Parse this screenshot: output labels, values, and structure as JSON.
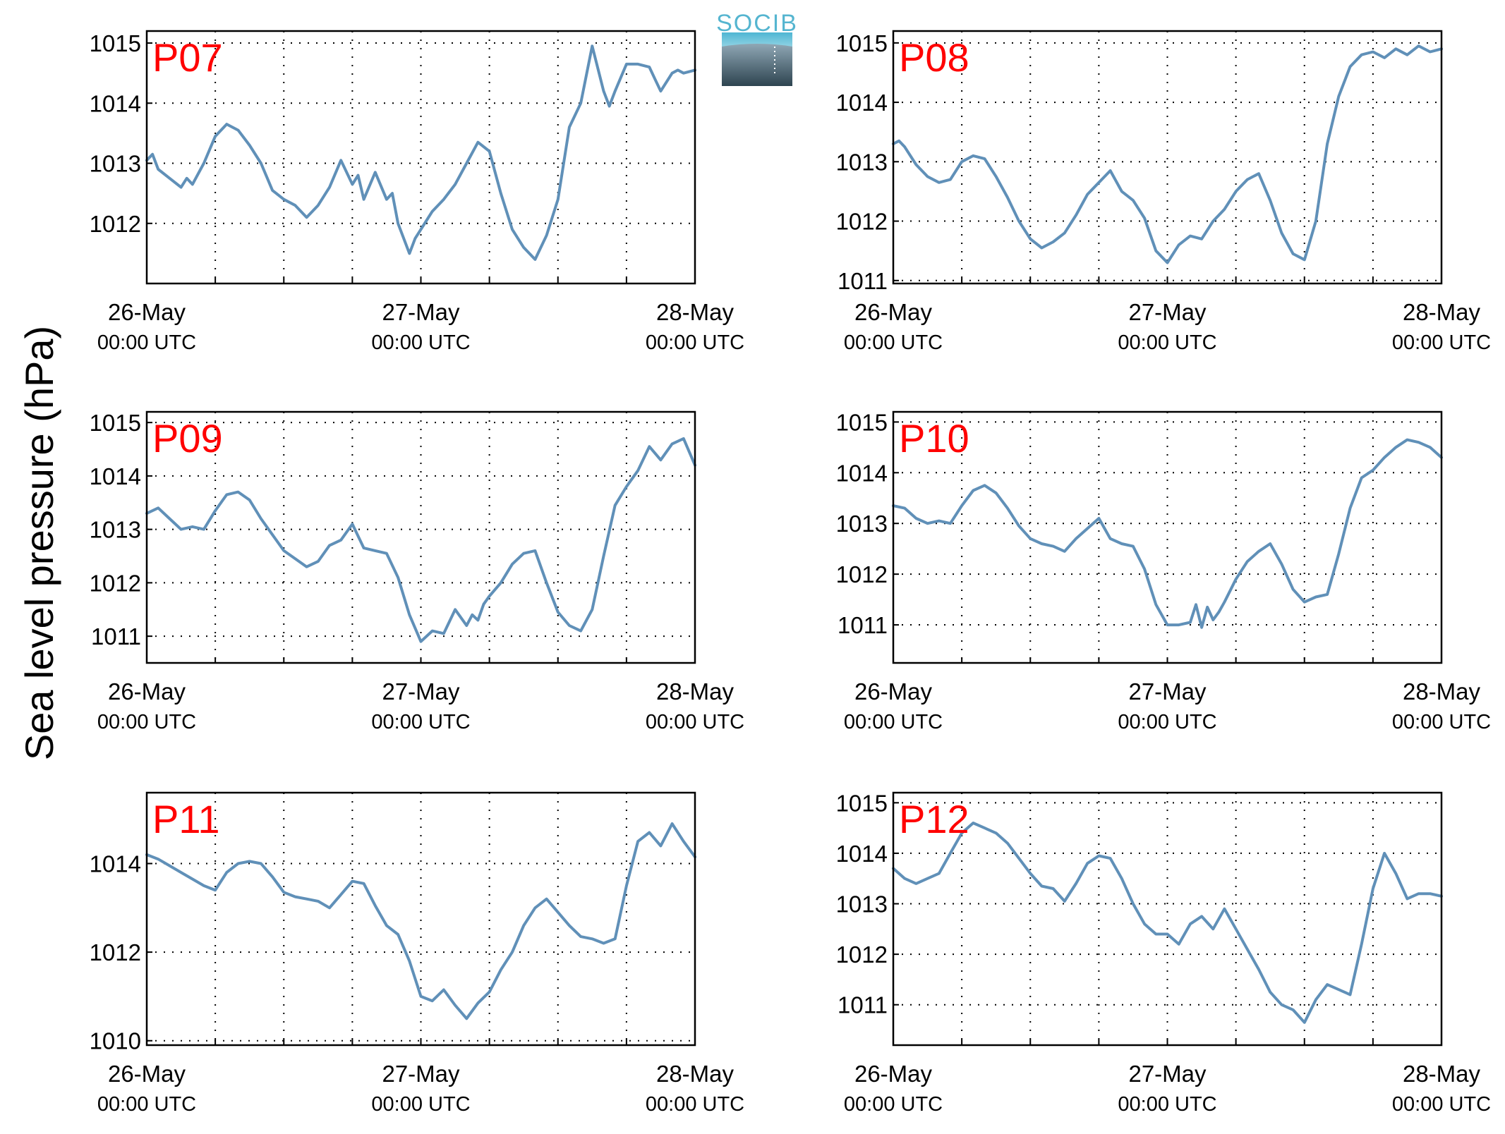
{
  "figure": {
    "ylabel": "Sea level pressure (hPa)",
    "logo_text": "SOCIB",
    "colors": {
      "line": "#6090b8",
      "label": "#ff0000",
      "grid": "#000000"
    }
  },
  "chart_data": [
    {
      "type": "line",
      "label": "P07",
      "xlim": [
        0,
        48
      ],
      "ylim": [
        1011.0,
        1015.2
      ],
      "yticks": [
        1012,
        1013,
        1014,
        1015
      ],
      "xticks": [
        {
          "value": 0,
          "date": "26-May",
          "time": "00:00 UTC"
        },
        {
          "value": 24,
          "date": "27-May",
          "time": "00:00 UTC"
        },
        {
          "value": 48,
          "date": "28-May",
          "time": "00:00 UTC"
        }
      ],
      "grid": true,
      "x": [
        0,
        0.5,
        1,
        2,
        3,
        3.5,
        4,
        5,
        6,
        7,
        7.5,
        8,
        9,
        10,
        11,
        12,
        13,
        14,
        15,
        16,
        17,
        18,
        18.5,
        19,
        20,
        21,
        21.5,
        22,
        23,
        23.5,
        24,
        24.5,
        25,
        26,
        27,
        28,
        29,
        30,
        31,
        32,
        33,
        34,
        35,
        36,
        37,
        38,
        39,
        40,
        40.5,
        41,
        42,
        43,
        44,
        44.5,
        45,
        46,
        46.5,
        47,
        48
      ],
      "values": [
        1013.05,
        1013.15,
        1012.9,
        1012.75,
        1012.6,
        1012.75,
        1012.65,
        1013.0,
        1013.45,
        1013.65,
        1013.6,
        1013.55,
        1013.3,
        1013.0,
        1012.55,
        1012.4,
        1012.3,
        1012.1,
        1012.3,
        1012.6,
        1013.05,
        1012.65,
        1012.8,
        1012.4,
        1012.85,
        1012.4,
        1012.5,
        1012.0,
        1011.5,
        1011.75,
        1011.9,
        1012.05,
        1012.2,
        1012.4,
        1012.65,
        1013.0,
        1013.35,
        1013.2,
        1012.5,
        1011.9,
        1011.6,
        1011.4,
        1011.8,
        1012.4,
        1013.6,
        1014.0,
        1014.95,
        1014.2,
        1013.95,
        1014.2,
        1014.65,
        1014.65,
        1014.6,
        1014.4,
        1014.2,
        1014.5,
        1014.55,
        1014.5,
        1014.55
      ]
    },
    {
      "type": "line",
      "label": "P08",
      "xlim": [
        0,
        48
      ],
      "ylim": [
        1010.95,
        1015.2
      ],
      "yticks": [
        1011,
        1012,
        1013,
        1014,
        1015
      ],
      "xticks": [
        {
          "value": 0,
          "date": "26-May",
          "time": "00:00 UTC"
        },
        {
          "value": 24,
          "date": "27-May",
          "time": "00:00 UTC"
        },
        {
          "value": 48,
          "date": "28-May",
          "time": "00:00 UTC"
        }
      ],
      "grid": true,
      "x": [
        0,
        0.5,
        1,
        2,
        3,
        4,
        5,
        6,
        7,
        8,
        9,
        10,
        11,
        12,
        13,
        14,
        15,
        16,
        17,
        18,
        19,
        20,
        21,
        22,
        23,
        24,
        25,
        26,
        27,
        28,
        29,
        30,
        31,
        32,
        33,
        34,
        35,
        36,
        37,
        38,
        39,
        40,
        41,
        42,
        43,
        44,
        45,
        46,
        47,
        48
      ],
      "values": [
        1013.3,
        1013.35,
        1013.25,
        1012.95,
        1012.75,
        1012.65,
        1012.7,
        1013.0,
        1013.1,
        1013.05,
        1012.75,
        1012.4,
        1012.0,
        1011.7,
        1011.55,
        1011.65,
        1011.8,
        1012.1,
        1012.45,
        1012.65,
        1012.85,
        1012.5,
        1012.35,
        1012.05,
        1011.5,
        1011.3,
        1011.6,
        1011.75,
        1011.7,
        1012.0,
        1012.2,
        1012.5,
        1012.7,
        1012.8,
        1012.35,
        1011.8,
        1011.45,
        1011.35,
        1012.0,
        1013.3,
        1014.1,
        1014.6,
        1014.8,
        1014.85,
        1014.75,
        1014.9,
        1014.8,
        1014.95,
        1014.85,
        1014.9
      ]
    },
    {
      "type": "line",
      "label": "P09",
      "xlim": [
        0,
        48
      ],
      "ylim": [
        1010.5,
        1015.2
      ],
      "yticks": [
        1011,
        1012,
        1013,
        1014,
        1015
      ],
      "xticks": [
        {
          "value": 0,
          "date": "26-May",
          "time": "00:00 UTC"
        },
        {
          "value": 24,
          "date": "27-May",
          "time": "00:00 UTC"
        },
        {
          "value": 48,
          "date": "28-May",
          "time": "00:00 UTC"
        }
      ],
      "grid": true,
      "x": [
        0,
        1,
        2,
        3,
        4,
        5,
        6,
        7,
        8,
        9,
        10,
        11,
        12,
        13,
        14,
        15,
        16,
        17,
        18,
        19,
        20,
        21,
        22,
        23,
        24,
        25,
        26,
        27,
        28,
        28.5,
        29,
        29.5,
        30,
        31,
        32,
        33,
        34,
        35,
        36,
        37,
        38,
        39,
        40,
        41,
        42,
        43,
        44,
        45,
        46,
        47,
        48
      ],
      "values": [
        1013.3,
        1013.4,
        1013.2,
        1013.0,
        1013.05,
        1013.0,
        1013.35,
        1013.65,
        1013.7,
        1013.55,
        1013.2,
        1012.9,
        1012.6,
        1012.45,
        1012.3,
        1012.4,
        1012.7,
        1012.8,
        1013.1,
        1012.65,
        1012.6,
        1012.55,
        1012.1,
        1011.4,
        1010.9,
        1011.1,
        1011.05,
        1011.5,
        1011.2,
        1011.4,
        1011.3,
        1011.6,
        1011.75,
        1012.0,
        1012.35,
        1012.55,
        1012.6,
        1012.0,
        1011.45,
        1011.2,
        1011.1,
        1011.5,
        1012.5,
        1013.45,
        1013.8,
        1014.1,
        1014.55,
        1014.3,
        1014.6,
        1014.7,
        1014.2
      ]
    },
    {
      "type": "line",
      "label": "P10",
      "xlim": [
        0,
        48
      ],
      "ylim": [
        1010.25,
        1015.2
      ],
      "yticks": [
        1011,
        1012,
        1013,
        1014,
        1015
      ],
      "xticks": [
        {
          "value": 0,
          "date": "26-May",
          "time": "00:00 UTC"
        },
        {
          "value": 24,
          "date": "27-May",
          "time": "00:00 UTC"
        },
        {
          "value": 48,
          "date": "28-May",
          "time": "00:00 UTC"
        }
      ],
      "grid": true,
      "x": [
        0,
        1,
        2,
        3,
        4,
        5,
        6,
        7,
        8,
        9,
        10,
        11,
        12,
        13,
        14,
        15,
        16,
        17,
        18,
        19,
        20,
        21,
        22,
        23,
        24,
        25,
        26,
        26.5,
        27,
        27.5,
        28,
        28.5,
        29,
        30,
        31,
        32,
        33,
        34,
        35,
        36,
        37,
        38,
        39,
        40,
        41,
        42,
        43,
        44,
        45,
        46,
        47,
        48
      ],
      "values": [
        1013.35,
        1013.3,
        1013.1,
        1013.0,
        1013.05,
        1013.0,
        1013.35,
        1013.65,
        1013.75,
        1013.6,
        1013.3,
        1012.95,
        1012.7,
        1012.6,
        1012.55,
        1012.45,
        1012.7,
        1012.9,
        1013.1,
        1012.7,
        1012.6,
        1012.55,
        1012.1,
        1011.4,
        1011.0,
        1011.0,
        1011.05,
        1011.4,
        1010.95,
        1011.35,
        1011.1,
        1011.25,
        1011.45,
        1011.9,
        1012.25,
        1012.45,
        1012.6,
        1012.2,
        1011.7,
        1011.45,
        1011.55,
        1011.6,
        1012.4,
        1013.3,
        1013.9,
        1014.05,
        1014.3,
        1014.5,
        1014.65,
        1014.6,
        1014.5,
        1014.3
      ]
    },
    {
      "type": "line",
      "label": "P11",
      "xlim": [
        0,
        48
      ],
      "ylim": [
        1009.9,
        1015.6
      ],
      "yticks": [
        1010,
        1012,
        1014
      ],
      "xticks": [
        {
          "value": 0,
          "date": "26-May",
          "time": "00:00 UTC"
        },
        {
          "value": 24,
          "date": "27-May",
          "time": "00:00 UTC"
        },
        {
          "value": 48,
          "date": "28-May",
          "time": "00:00 UTC"
        }
      ],
      "grid": true,
      "x": [
        0,
        1,
        2,
        3,
        4,
        5,
        6,
        7,
        8,
        9,
        10,
        11,
        12,
        13,
        14,
        15,
        16,
        17,
        18,
        19,
        20,
        21,
        22,
        23,
        24,
        25,
        26,
        27,
        28,
        29,
        30,
        31,
        32,
        33,
        34,
        35,
        36,
        37,
        38,
        39,
        40,
        41,
        42,
        43,
        44,
        45,
        46,
        47,
        48
      ],
      "values": [
        1014.2,
        1014.1,
        1013.95,
        1013.8,
        1013.65,
        1013.5,
        1013.4,
        1013.8,
        1014.0,
        1014.05,
        1014.0,
        1013.7,
        1013.35,
        1013.25,
        1013.2,
        1013.15,
        1013.0,
        1013.3,
        1013.6,
        1013.55,
        1013.05,
        1012.6,
        1012.4,
        1011.8,
        1011.0,
        1010.9,
        1011.15,
        1010.8,
        1010.5,
        1010.85,
        1011.1,
        1011.6,
        1012.0,
        1012.6,
        1013.0,
        1013.2,
        1012.9,
        1012.6,
        1012.35,
        1012.3,
        1012.2,
        1012.3,
        1013.5,
        1014.5,
        1014.7,
        1014.4,
        1014.9,
        1014.5,
        1014.15
      ]
    },
    {
      "type": "line",
      "label": "P12",
      "xlim": [
        0,
        48
      ],
      "ylim": [
        1010.2,
        1015.2
      ],
      "yticks": [
        1011,
        1012,
        1013,
        1014,
        1015
      ],
      "xticks": [
        {
          "value": 0,
          "date": "26-May",
          "time": "00:00 UTC"
        },
        {
          "value": 24,
          "date": "27-May",
          "time": "00:00 UTC"
        },
        {
          "value": 48,
          "date": "28-May",
          "time": "00:00 UTC"
        }
      ],
      "grid": true,
      "x": [
        0,
        1,
        2,
        3,
        4,
        5,
        6,
        7,
        8,
        9,
        10,
        11,
        12,
        13,
        14,
        15,
        16,
        17,
        18,
        19,
        20,
        21,
        22,
        23,
        24,
        25,
        26,
        27,
        28,
        29,
        30,
        31,
        32,
        33,
        34,
        35,
        36,
        37,
        38,
        39,
        40,
        41,
        42,
        43,
        44,
        45,
        46,
        47,
        48
      ],
      "values": [
        1013.7,
        1013.5,
        1013.4,
        1013.5,
        1013.6,
        1014.0,
        1014.4,
        1014.6,
        1014.5,
        1014.4,
        1014.2,
        1013.9,
        1013.6,
        1013.35,
        1013.3,
        1013.05,
        1013.4,
        1013.8,
        1013.95,
        1013.9,
        1013.5,
        1013.0,
        1012.6,
        1012.4,
        1012.4,
        1012.2,
        1012.6,
        1012.75,
        1012.5,
        1012.9,
        1012.5,
        1012.1,
        1011.7,
        1011.25,
        1011.0,
        1010.9,
        1010.65,
        1011.1,
        1011.4,
        1011.3,
        1011.2,
        1012.2,
        1013.3,
        1014.0,
        1013.6,
        1013.1,
        1013.2,
        1013.2,
        1013.15
      ]
    }
  ]
}
